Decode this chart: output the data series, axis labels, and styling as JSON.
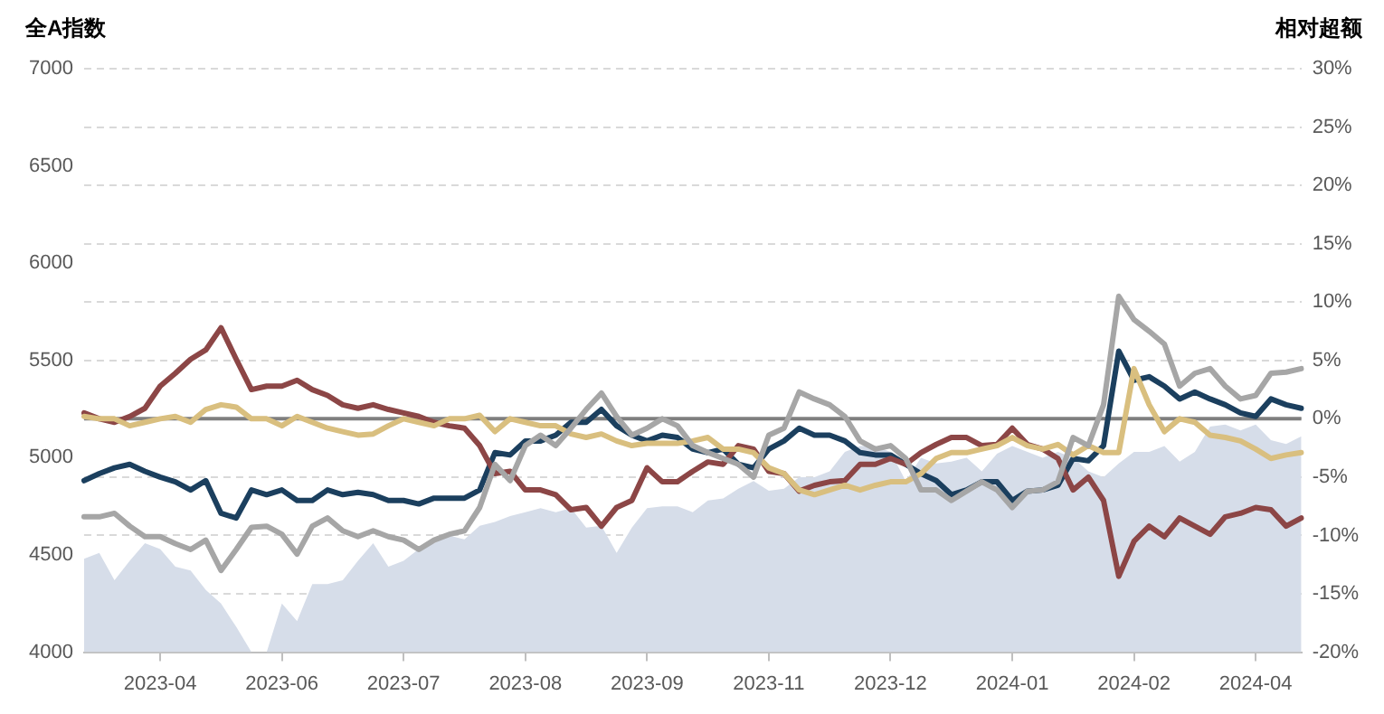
{
  "chart_data": {
    "type": "line",
    "ylabel": "全A指数",
    "y2label": "相对超额",
    "categories": [
      null,
      null,
      null,
      null,
      null,
      "2023-04",
      null,
      null,
      null,
      null,
      null,
      null,
      null,
      "2023-06",
      null,
      null,
      null,
      null,
      null,
      null,
      null,
      "2023-07",
      null,
      null,
      null,
      null,
      null,
      null,
      null,
      "2023-08",
      null,
      null,
      null,
      null,
      null,
      null,
      null,
      "2023-09",
      null,
      null,
      null,
      null,
      null,
      null,
      null,
      "2023-11",
      null,
      null,
      null,
      null,
      null,
      null,
      null,
      "2023-12",
      null,
      null,
      null,
      null,
      null,
      null,
      null,
      "2024-01",
      null,
      null,
      null,
      null,
      null,
      null,
      null,
      "2024-02",
      null,
      null,
      null,
      null,
      null,
      null,
      null,
      "2024-04",
      null,
      null,
      null
    ],
    "series": [
      {
        "type": "area",
        "axis": "y",
        "color": "#d6dde9",
        "values": [
          4480,
          4510,
          4370,
          4470,
          4560,
          4530,
          4440,
          4420,
          4320,
          4250,
          4130,
          4000,
          4000,
          4250,
          4160,
          4350,
          4350,
          4370,
          4470,
          4560,
          4440,
          4470,
          4530,
          4560,
          4600,
          4580,
          4650,
          4670,
          4700,
          4720,
          4740,
          4720,
          4740,
          4640,
          4650,
          4510,
          4640,
          4740,
          4750,
          4750,
          4720,
          4780,
          4790,
          4840,
          4880,
          4830,
          4840,
          4900,
          4900,
          4930,
          5030,
          5060,
          5060,
          5030,
          4880,
          5000,
          4970,
          4980,
          5000,
          4930,
          5020,
          5060,
          5030,
          5000,
          5030,
          5000,
          4930,
          4900,
          4970,
          5030,
          5030,
          5060,
          4980,
          5030,
          5160,
          5170,
          5140,
          5170,
          5090,
          5070,
          5110
        ]
      },
      {
        "type": "line",
        "axis": "y2",
        "color": "#a6a6a6",
        "values": [
          -8.4,
          -8.4,
          -8.1,
          -9.2,
          -10.1,
          -10.1,
          -10.7,
          -11.2,
          -10.4,
          -13.0,
          -11.2,
          -9.3,
          -9.2,
          -9.9,
          -11.6,
          -9.2,
          -8.5,
          -9.6,
          -10.1,
          -9.6,
          -10.1,
          -10.4,
          -11.2,
          -10.4,
          -9.9,
          -9.6,
          -7.6,
          -3.9,
          -5.3,
          -2.3,
          -1.4,
          -2.3,
          -0.8,
          0.8,
          2.2,
          0.2,
          -1.4,
          -0.8,
          0,
          -0.6,
          -2.3,
          -2.9,
          -3.4,
          -3.9,
          -5.0,
          -1.4,
          -0.8,
          2.3,
          1.7,
          1.2,
          0.2,
          -1.9,
          -2.6,
          -2.3,
          -3.4,
          -6.1,
          -6.1,
          -7.0,
          -6.2,
          -5.4,
          -6.1,
          -7.6,
          -6.2,
          -6.1,
          -5.4,
          -1.6,
          -2.3,
          1.2,
          10.5,
          8.5,
          7.5,
          6.4,
          2.8,
          3.9,
          4.3,
          2.8,
          1.7,
          2.0,
          3.9,
          4.0,
          4.3
        ]
      },
      {
        "type": "line",
        "axis": "y2",
        "color": "#d9bf7f",
        "values": [
          0.2,
          0,
          0,
          -0.6,
          -0.3,
          0,
          0.2,
          -0.3,
          0.8,
          1.2,
          1.0,
          0,
          0,
          -0.6,
          0.2,
          -0.3,
          -0.8,
          -1.1,
          -1.4,
          -1.3,
          -0.6,
          0,
          -0.3,
          -0.6,
          0,
          0,
          0.3,
          -1.1,
          0,
          -0.3,
          -0.6,
          -0.6,
          -1.3,
          -1.6,
          -1.3,
          -1.9,
          -2.3,
          -2.1,
          -2.1,
          -2.1,
          -1.9,
          -1.6,
          -2.6,
          -2.6,
          -2.9,
          -4.2,
          -4.7,
          -6.1,
          -6.5,
          -6.1,
          -5.7,
          -6.1,
          -5.7,
          -5.4,
          -5.4,
          -4.7,
          -3.4,
          -2.9,
          -2.9,
          -2.6,
          -2.3,
          -1.6,
          -2.3,
          -2.6,
          -2.2,
          -3.1,
          -2.3,
          -2.9,
          -2.9,
          4.3,
          1.2,
          -1.1,
          0,
          -0.3,
          -1.4,
          -1.6,
          -1.9,
          -2.6,
          -3.4,
          -3.1,
          -2.9
        ]
      },
      {
        "type": "line",
        "axis": "y2",
        "color": "#8c4646",
        "values": [
          0.5,
          0,
          -0.3,
          0.2,
          0.9,
          2.8,
          3.9,
          5.1,
          5.9,
          7.8,
          5.1,
          2.5,
          2.8,
          2.8,
          3.3,
          2.5,
          2.0,
          1.2,
          0.9,
          1.2,
          0.8,
          0.5,
          0.2,
          -0.3,
          -0.6,
          -0.8,
          -2.3,
          -4.7,
          -4.5,
          -6.1,
          -6.1,
          -6.5,
          -7.8,
          -7.6,
          -9.2,
          -7.6,
          -7.0,
          -4.2,
          -5.4,
          -5.4,
          -4.5,
          -3.7,
          -3.9,
          -2.3,
          -2.6,
          -4.5,
          -4.7,
          -6.2,
          -5.7,
          -5.4,
          -5.3,
          -3.9,
          -3.9,
          -3.4,
          -3.9,
          -2.9,
          -2.2,
          -1.6,
          -1.6,
          -2.3,
          -2.2,
          -0.8,
          -2.2,
          -2.6,
          -3.4,
          -6.1,
          -5.0,
          -7.0,
          -13.5,
          -10.5,
          -9.2,
          -10.1,
          -8.5,
          -9.2,
          -9.9,
          -8.4,
          -8.1,
          -7.6,
          -7.8,
          -9.2,
          -8.5
        ]
      },
      {
        "type": "line",
        "axis": "y2",
        "color": "#1b3f5e",
        "values": [
          -5.3,
          -4.7,
          -4.2,
          -3.9,
          -4.5,
          -5.0,
          -5.4,
          -6.1,
          -5.3,
          -8.1,
          -8.5,
          -6.1,
          -6.5,
          -6.1,
          -7.0,
          -7.0,
          -6.1,
          -6.5,
          -6.3,
          -6.5,
          -7.0,
          -7.0,
          -7.3,
          -6.8,
          -6.8,
          -6.8,
          -6.1,
          -2.9,
          -3.1,
          -1.9,
          -1.9,
          -1.4,
          -0.3,
          -0.3,
          0.8,
          -0.6,
          -1.4,
          -1.9,
          -1.4,
          -1.6,
          -2.6,
          -2.9,
          -2.6,
          -3.9,
          -4.2,
          -2.6,
          -1.9,
          -0.8,
          -1.4,
          -1.4,
          -1.9,
          -2.9,
          -3.1,
          -3.1,
          -3.9,
          -4.7,
          -5.3,
          -6.5,
          -6.1,
          -5.4,
          -5.4,
          -7.0,
          -6.2,
          -6.1,
          -5.7,
          -3.4,
          -3.6,
          -2.3,
          5.8,
          3.3,
          3.6,
          2.8,
          1.7,
          2.3,
          1.7,
          1.2,
          0.5,
          0.2,
          1.7,
          1.2,
          0.9
        ]
      }
    ],
    "ylim": [
      4000,
      7000
    ],
    "yticks": [
      4000,
      4500,
      5000,
      5500,
      6000,
      6500,
      7000
    ],
    "y2lim": [
      -20,
      30
    ],
    "y2ticks": [
      {
        "value": -20,
        "label": "-20%"
      },
      {
        "value": -15,
        "label": "-15%"
      },
      {
        "value": -10,
        "label": "-10%"
      },
      {
        "value": -5,
        "label": "-5%"
      },
      {
        "value": 0,
        "label": "0%"
      },
      {
        "value": 5,
        "label": "5%"
      },
      {
        "value": 10,
        "label": "10%"
      },
      {
        "value": 15,
        "label": "15%"
      },
      {
        "value": 20,
        "label": "20%"
      },
      {
        "value": 25,
        "label": "25%"
      },
      {
        "value": 30,
        "label": "30%"
      }
    ],
    "ref_lines": [
      {
        "axis": "y2",
        "value": 0,
        "color": "#7f7f7f"
      }
    ],
    "grid": "y2",
    "legend": false,
    "marker": "none",
    "line_style": "solid"
  }
}
